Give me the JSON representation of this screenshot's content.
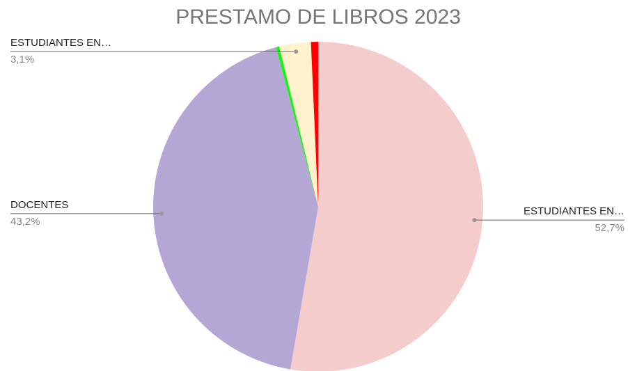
{
  "chart_data": {
    "type": "pie",
    "title": "PRESTAMO DE LIBROS 2023",
    "categories": [
      "ESTUDIANTES EN…",
      "DOCENTES",
      null,
      "ESTUDIANTES EN…",
      null
    ],
    "values": [
      52.7,
      43.2,
      0.3,
      3.1,
      0.7
    ],
    "value_labels": [
      "52,7%",
      "43,2%",
      null,
      "3,1%",
      null
    ],
    "colors": [
      "#f4cccc",
      "#b4a7d6",
      "#00ff00",
      "#fff2cc",
      "#ff0000"
    ]
  }
}
